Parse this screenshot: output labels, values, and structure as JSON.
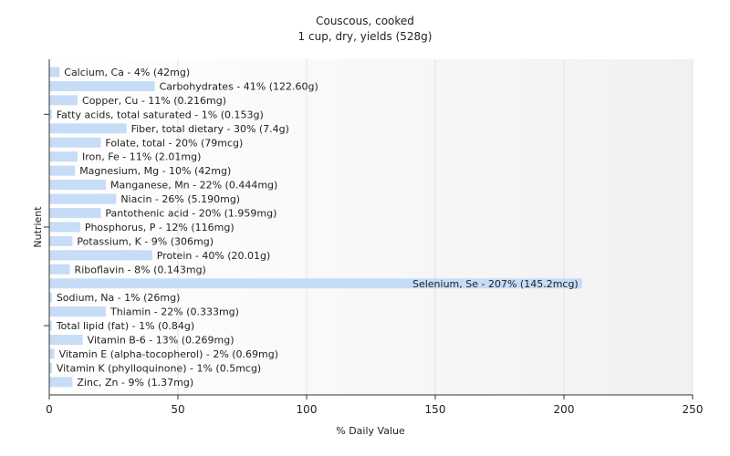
{
  "chart_data": {
    "type": "bar",
    "orientation": "horizontal",
    "title": "Couscous, cooked",
    "subtitle": "1 cup, dry, yields (528g)",
    "xlabel": "% Daily Value",
    "ylabel": "Nutrient",
    "xlim": [
      0,
      250
    ],
    "xticks": [
      0,
      50,
      100,
      150,
      200,
      250
    ],
    "grid": true,
    "bar_color": "#c6dcf7",
    "categories": [
      "Calcium, Ca - 4% (42mg)",
      "Carbohydrates - 41% (122.60g)",
      "Copper, Cu - 11% (0.216mg)",
      "Fatty acids, total saturated - 1% (0.153g)",
      "Fiber, total dietary - 30% (7.4g)",
      "Folate, total - 20% (79mcg)",
      "Iron, Fe - 11% (2.01mg)",
      "Magnesium, Mg - 10% (42mg)",
      "Manganese, Mn - 22% (0.444mg)",
      "Niacin - 26% (5.190mg)",
      "Pantothenic acid - 20% (1.959mg)",
      "Phosphorus, P - 12% (116mg)",
      "Potassium, K - 9% (306mg)",
      "Protein - 40% (20.01g)",
      "Riboflavin - 8% (0.143mg)",
      "Selenium, Se - 207% (145.2mcg)",
      "Sodium, Na - 1% (26mg)",
      "Thiamin - 22% (0.333mg)",
      "Total lipid (fat) - 1% (0.84g)",
      "Vitamin B-6 - 13% (0.269mg)",
      "Vitamin E (alpha-tocopherol) - 2% (0.69mg)",
      "Vitamin K (phylloquinone) - 1% (0.5mcg)",
      "Zinc, Zn - 9% (1.37mg)"
    ],
    "values": [
      4,
      41,
      11,
      1,
      30,
      20,
      11,
      10,
      22,
      26,
      20,
      12,
      9,
      40,
      8,
      207,
      1,
      22,
      1,
      13,
      2,
      1,
      9
    ]
  }
}
